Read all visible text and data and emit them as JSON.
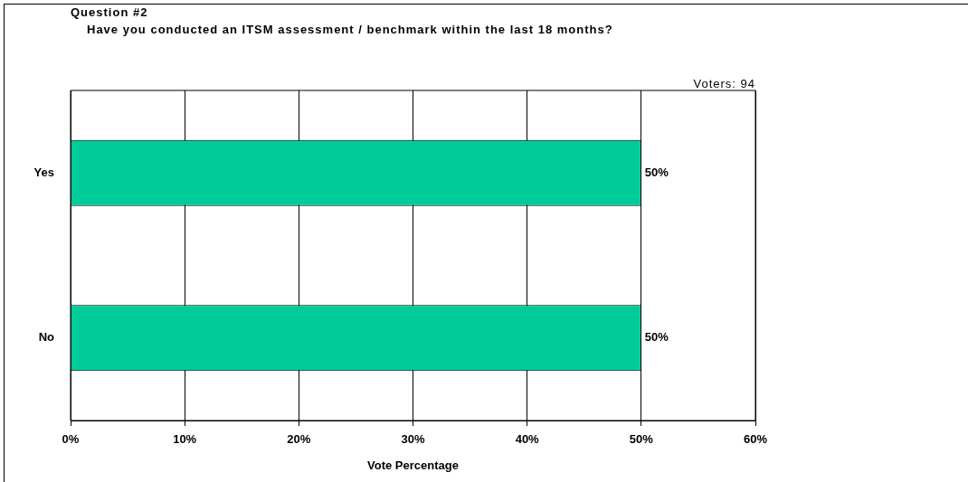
{
  "chart_data": {
    "type": "bar",
    "orientation": "horizontal",
    "title": "Question #2",
    "subtitle": "Have you conducted an ITSM assessment / benchmark within the last 18 months?",
    "annotations": [
      "Voters: 94"
    ],
    "xlabel": "Vote Percentage",
    "categories": [
      "Yes",
      "No"
    ],
    "values": [
      50,
      50
    ],
    "value_labels": [
      "50%",
      "50%"
    ],
    "color": "#00cc99",
    "xlim": [
      0,
      60
    ],
    "xticks": [
      {
        "value": 0,
        "label": "0%"
      },
      {
        "value": 10,
        "label": "10%"
      },
      {
        "value": 20,
        "label": "20%"
      },
      {
        "value": 30,
        "label": "30%"
      },
      {
        "value": 40,
        "label": "40%"
      },
      {
        "value": 50,
        "label": "50%"
      },
      {
        "value": 60,
        "label": "60%"
      }
    ],
    "grid": "x",
    "legend": false
  }
}
